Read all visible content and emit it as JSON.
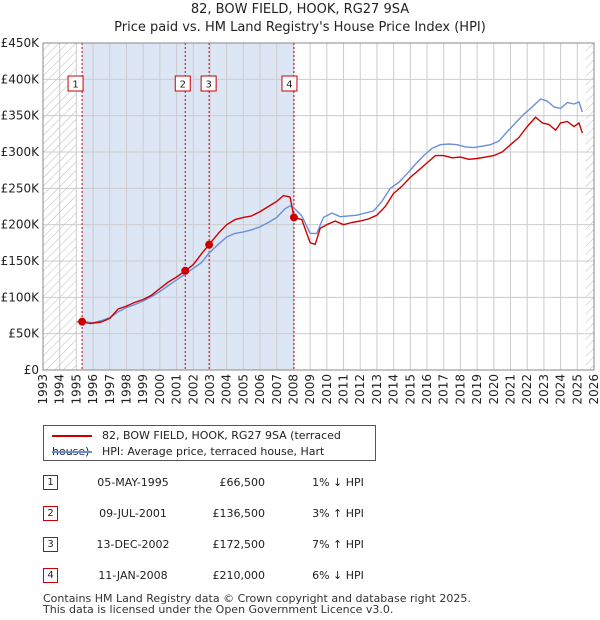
{
  "title": {
    "line1": "82, BOW FIELD, HOOK, RG27 9SA",
    "line2": "Price paid vs. HM Land Registry's House Price Index (HPI)"
  },
  "colors": {
    "price": "#cc0000",
    "hpi": "#6a8fd8",
    "marker": "#cc0000",
    "grid": "#cccccc",
    "shade": "#dde6f5"
  },
  "legend": {
    "price_label": "82, BOW FIELD, HOOK, RG27 9SA (terraced house)",
    "hpi_label": "HPI: Average price, terraced house, Hart"
  },
  "sales": [
    {
      "num": "1",
      "date": "05-MAY-1995",
      "price": "£66,500",
      "hpi": "1% ↓ HPI"
    },
    {
      "num": "2",
      "date": "09-JUL-2001",
      "price": "£136,500",
      "hpi": "3% ↑ HPI"
    },
    {
      "num": "3",
      "date": "13-DEC-2002",
      "price": "£172,500",
      "hpi": "7% ↑ HPI"
    },
    {
      "num": "4",
      "date": "11-JAN-2008",
      "price": "£210,000",
      "hpi": "6% ↓ HPI"
    }
  ],
  "footer": {
    "line1": "Contains HM Land Registry data © Crown copyright and database right 2025.",
    "line2": "This data is licensed under the Open Government Licence v3.0."
  },
  "chart_data": {
    "type": "line",
    "ylim": [
      0,
      450000
    ],
    "xlim": [
      1993,
      2026
    ],
    "y_ticks": [
      {
        "v": 0,
        "label": "£0"
      },
      {
        "v": 50000,
        "label": "£50K"
      },
      {
        "v": 100000,
        "label": "£100K"
      },
      {
        "v": 150000,
        "label": "£150K"
      },
      {
        "v": 200000,
        "label": "£200K"
      },
      {
        "v": 250000,
        "label": "£250K"
      },
      {
        "v": 300000,
        "label": "£300K"
      },
      {
        "v": 350000,
        "label": "£350K"
      },
      {
        "v": 400000,
        "label": "£400K"
      },
      {
        "v": 450000,
        "label": "£450K"
      }
    ],
    "x_ticks": [
      "1993",
      "1994",
      "1995",
      "1996",
      "1997",
      "1998",
      "1999",
      "2000",
      "2001",
      "2002",
      "2003",
      "2004",
      "2005",
      "2006",
      "2007",
      "2008",
      "2009",
      "2010",
      "2011",
      "2012",
      "2013",
      "2014",
      "2015",
      "2016",
      "2017",
      "2018",
      "2019",
      "2020",
      "2021",
      "2022",
      "2023",
      "2024",
      "2025",
      "2026"
    ],
    "shaded_ranges": [
      [
        1995.34,
        2008.03
      ]
    ],
    "hatched_ranges": [
      [
        1993,
        1995.0
      ],
      [
        2025.5,
        2026
      ]
    ],
    "sale_points": [
      {
        "label": "1",
        "x": 1995.34,
        "y": 66500
      },
      {
        "label": "2",
        "x": 2001.52,
        "y": 136500
      },
      {
        "label": "3",
        "x": 2002.95,
        "y": 172500
      },
      {
        "label": "4",
        "x": 2008.03,
        "y": 210000
      }
    ],
    "series": [
      {
        "name": "82, BOW FIELD, HOOK, RG27 9SA (terraced house)",
        "x": [
          1995.34,
          1995.8,
          1996.5,
          1997,
          1997.5,
          1998,
          1998.5,
          1999,
          1999.5,
          2000,
          2000.5,
          2001,
          2001.52,
          2002,
          2002.5,
          2002.95,
          2003.5,
          2004,
          2004.5,
          2005,
          2005.5,
          2006,
          2006.5,
          2007,
          2007.4,
          2007.8,
          2008.03,
          2008.5,
          2009,
          2009.3,
          2009.6,
          2010,
          2010.5,
          2011,
          2011.5,
          2012,
          2012.5,
          2013,
          2013.5,
          2014,
          2014.5,
          2015,
          2015.5,
          2016,
          2016.5,
          2017,
          2017.5,
          2018,
          2018.5,
          2019,
          2019.5,
          2020,
          2020.5,
          2021,
          2021.5,
          2022,
          2022.5,
          2022.9,
          2023.3,
          2023.7,
          2024,
          2024.4,
          2024.8,
          2025.1,
          2025.3
        ],
        "values": [
          66500,
          64000,
          66000,
          71000,
          84000,
          88000,
          93000,
          97000,
          103000,
          112000,
          121000,
          128000,
          136500,
          145000,
          160000,
          172500,
          188000,
          200000,
          207000,
          210000,
          212000,
          218000,
          225000,
          232000,
          240000,
          238000,
          210000,
          207000,
          175000,
          173000,
          195000,
          200000,
          205000,
          200000,
          203000,
          205000,
          208000,
          213000,
          225000,
          243000,
          253000,
          265000,
          275000,
          285000,
          295000,
          295000,
          292000,
          293000,
          290000,
          291000,
          293000,
          295000,
          300000,
          310000,
          320000,
          335000,
          348000,
          340000,
          338000,
          330000,
          340000,
          342000,
          335000,
          340000,
          326000
        ]
      },
      {
        "name": "HPI: Average price, terraced house, Hart",
        "x": [
          1995.0,
          1995.34,
          1996,
          1996.5,
          1997,
          1997.5,
          1998,
          1998.5,
          1999,
          1999.5,
          2000,
          2000.5,
          2001,
          2001.52,
          2002,
          2002.5,
          2002.95,
          2003.5,
          2004,
          2004.5,
          2005,
          2005.5,
          2006,
          2006.5,
          2007,
          2007.5,
          2007.8,
          2008.03,
          2008.5,
          2009,
          2009.4,
          2009.8,
          2010.3,
          2010.8,
          2011.3,
          2011.8,
          2012.3,
          2012.8,
          2013.3,
          2013.8,
          2014.3,
          2014.8,
          2015.3,
          2015.8,
          2016.3,
          2016.8,
          2017.3,
          2017.8,
          2018.3,
          2018.8,
          2019.3,
          2019.8,
          2020.3,
          2020.8,
          2021.3,
          2021.8,
          2022.3,
          2022.8,
          2023.2,
          2023.6,
          2024,
          2024.4,
          2024.8,
          2025.1,
          2025.3
        ],
        "values": [
          66000,
          67000,
          65000,
          68000,
          72000,
          80000,
          86000,
          90000,
          95000,
          101000,
          108000,
          116000,
          124000,
          132000,
          140000,
          148000,
          161000,
          173000,
          183000,
          188000,
          190000,
          193000,
          197000,
          203000,
          210000,
          222000,
          226000,
          223000,
          212000,
          188000,
          188000,
          210000,
          216000,
          211000,
          212000,
          213000,
          216000,
          219000,
          232000,
          250000,
          258000,
          270000,
          283000,
          295000,
          305000,
          310000,
          311000,
          310000,
          307000,
          306000,
          308000,
          310000,
          315000,
          328000,
          340000,
          352000,
          362000,
          373000,
          370000,
          362000,
          360000,
          368000,
          366000,
          369000,
          355000
        ]
      }
    ]
  }
}
